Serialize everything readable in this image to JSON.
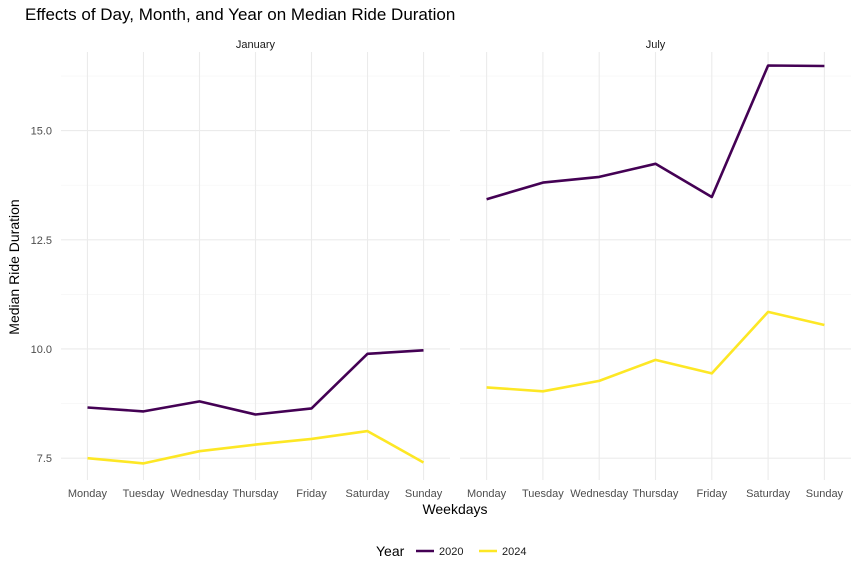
{
  "chart_data": {
    "type": "line",
    "title": "Effects of Day, Month, and Year on Median Ride Duration",
    "xlabel": "Weekdays",
    "ylabel": "Median Ride Duration",
    "categories": [
      "Monday",
      "Tuesday",
      "Wednesday",
      "Thursday",
      "Friday",
      "Saturday",
      "Sunday"
    ],
    "ylim": [
      7.0,
      16.8
    ],
    "yticks": [
      7.5,
      10.0,
      12.5,
      15.0
    ],
    "ytick_labels": [
      "7.5",
      "10.0",
      "12.5",
      "15.0"
    ],
    "grid": true,
    "legend": {
      "title": "Year",
      "position": "bottom"
    },
    "series_styles": [
      {
        "name": "2020",
        "color": "#440154"
      },
      {
        "name": "2024",
        "color": "#FDE725"
      }
    ],
    "panels": [
      {
        "facet": "January",
        "series": [
          {
            "name": "2020",
            "values": [
              8.66,
              8.57,
              8.8,
              8.5,
              8.64,
              9.89,
              9.97
            ]
          },
          {
            "name": "2024",
            "values": [
              7.5,
              7.38,
              7.66,
              7.81,
              7.94,
              8.12,
              7.4
            ]
          }
        ]
      },
      {
        "facet": "July",
        "series": [
          {
            "name": "2020",
            "values": [
              13.43,
              13.81,
              13.94,
              14.24,
              13.48,
              16.49,
              16.48
            ]
          },
          {
            "name": "2024",
            "values": [
              9.12,
              9.03,
              9.27,
              9.75,
              9.44,
              10.85,
              10.55
            ]
          }
        ]
      }
    ]
  }
}
